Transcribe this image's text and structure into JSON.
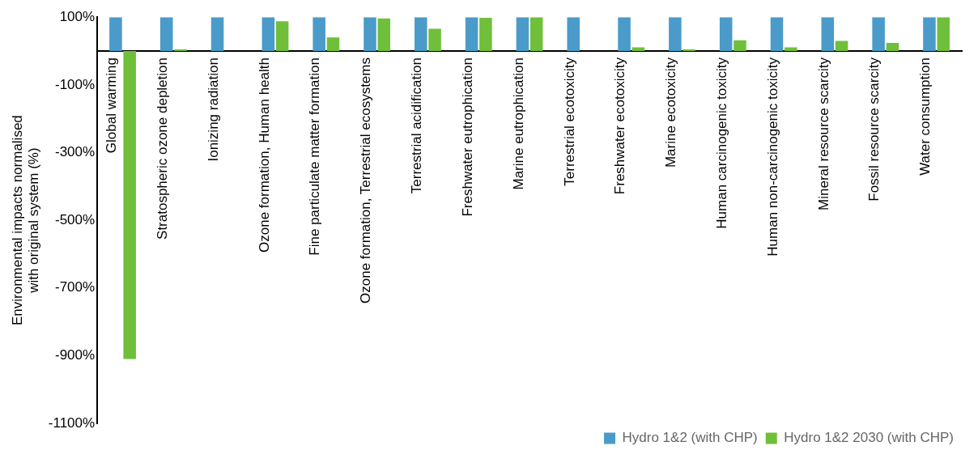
{
  "chart_data": {
    "type": "bar",
    "ylabel": "Environmental impacts normalised\nwith original system (%)",
    "categories": [
      "Global warming",
      "Stratospheric ozone depletion",
      "Ionizing radiation",
      "Ozone formation, Human health",
      "Fine particulate matter formation",
      "Ozone formation, Terrestrial ecosystems",
      "Terrestrial acidification",
      "Freshwater eutrophication",
      "Marine eutrophication",
      "Terrestrial ecotoxicity",
      "Freshwater ecotoxicity",
      "Marine ecotoxicity",
      "Human carcinogenic toxicity",
      "Human non-carcinogenic toxicity",
      "Mineral resource scarcity",
      "Fossil resource scarcity",
      "Water consumption"
    ],
    "series": [
      {
        "name": "Hydro 1&2 (with CHP)",
        "color": "#4a9bc9",
        "values": [
          100,
          100,
          100,
          100,
          100,
          100,
          100,
          100,
          100,
          100,
          100,
          100,
          100,
          100,
          100,
          100,
          100
        ]
      },
      {
        "name": "Hydro 1&2 2030 (with CHP)",
        "color": "#70bf3a",
        "values": [
          -910,
          5,
          0,
          88,
          40,
          96,
          66,
          98,
          100,
          0,
          11,
          5,
          32,
          11,
          30,
          24,
          100
        ]
      }
    ],
    "ylim": [
      -1100,
      100
    ],
    "yticks": [
      {
        "value": 100,
        "label": "100%"
      },
      {
        "value": -100,
        "label": "-100%"
      },
      {
        "value": -300,
        "label": "-300%"
      },
      {
        "value": -500,
        "label": "-500%"
      },
      {
        "value": -700,
        "label": "-700%"
      },
      {
        "value": -900,
        "label": "-900%"
      },
      {
        "value": -1100,
        "label": "-1100%"
      }
    ],
    "grid": false,
    "legend": "bottom right"
  }
}
